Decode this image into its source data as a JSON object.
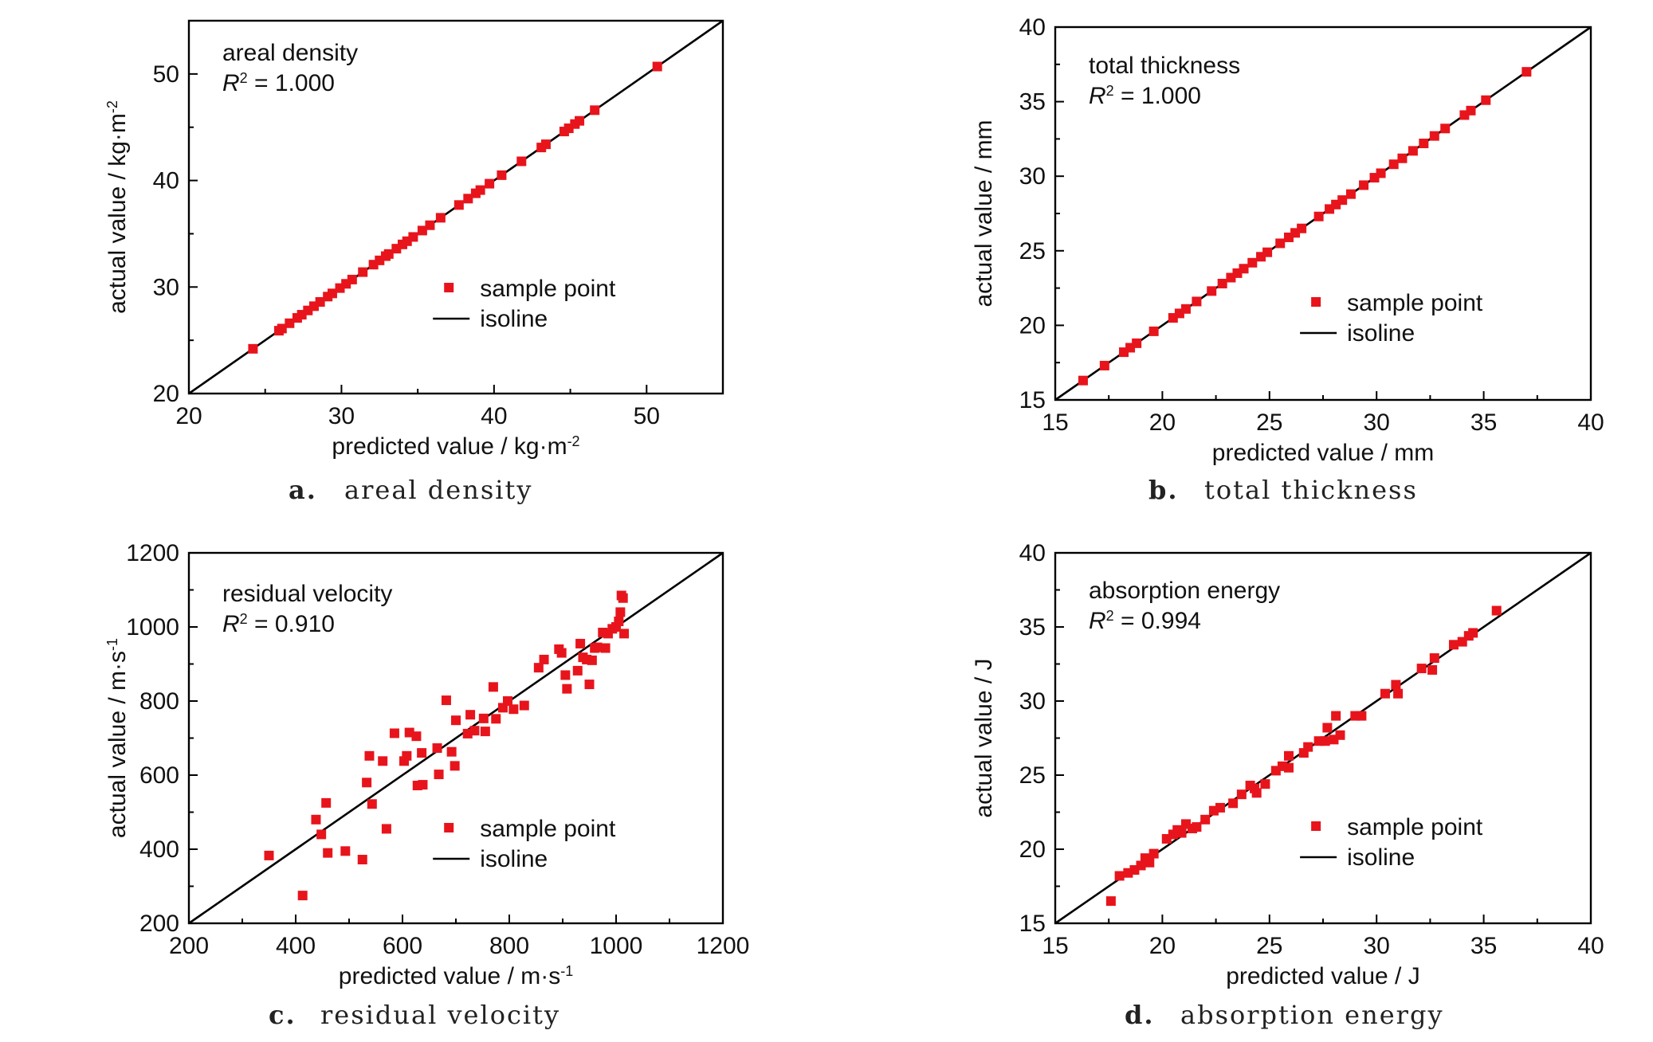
{
  "figure": {
    "charts": [
      {
        "panel_letter": "a.",
        "caption": "areal density",
        "annotation_title": "areal density",
        "r2_value": " = 1.000",
        "legend": {
          "sample": "sample point",
          "isoline": "isoline"
        },
        "xlabel": "predicted value / kg·m",
        "xlabel_sup": "-2",
        "ylabel": "actual value / kg·m",
        "ylabel_sup": "-2",
        "xticks": [
          "20",
          "30",
          "40",
          "50"
        ],
        "yticks": [
          "20",
          "30",
          "40",
          "50"
        ]
      },
      {
        "panel_letter": "b.",
        "caption": "total thickness",
        "annotation_title": "total thickness",
        "r2_value": " = 1.000",
        "legend": {
          "sample": "sample point",
          "isoline": "isoline"
        },
        "xlabel": "predicted value / mm",
        "xlabel_sup": "",
        "ylabel": "actual value / mm",
        "ylabel_sup": "",
        "xticks": [
          "15",
          "20",
          "25",
          "30",
          "35",
          "40"
        ],
        "yticks": [
          "15",
          "20",
          "25",
          "30",
          "35",
          "40"
        ]
      },
      {
        "panel_letter": "c.",
        "caption": "residual velocity",
        "annotation_title": "residual velocity",
        "r2_value": " = 0.910",
        "legend": {
          "sample": "sample point",
          "isoline": "isoline"
        },
        "xlabel": "predicted value / m·s",
        "xlabel_sup": "-1",
        "ylabel": "actual value / m·s",
        "ylabel_sup": "-1",
        "xticks": [
          "200",
          "400",
          "600",
          "800",
          "1000",
          "1200"
        ],
        "yticks": [
          "200",
          "400",
          "600",
          "800",
          "1000",
          "1200"
        ]
      },
      {
        "panel_letter": "d.",
        "caption": "absorption energy",
        "annotation_title": "absorption energy",
        "r2_value": " = 0.994",
        "legend": {
          "sample": "sample point",
          "isoline": "isoline"
        },
        "xlabel": "predicted value / J",
        "xlabel_sup": "",
        "ylabel": "actual value / J",
        "ylabel_sup": "",
        "xticks": [
          "15",
          "20",
          "25",
          "30",
          "35",
          "40"
        ],
        "yticks": [
          "15",
          "20",
          "25",
          "30",
          "35",
          "40"
        ]
      }
    ]
  },
  "chart_data": [
    {
      "type": "scatter",
      "title": "areal density",
      "r2": "1.000",
      "xlabel": "predicted value / kg·m-2",
      "ylabel": "actual value / kg·m-2",
      "xlim": [
        20,
        55
      ],
      "ylim": [
        20,
        55
      ],
      "xticks": [
        20,
        30,
        40,
        50
      ],
      "yticks": [
        20,
        30,
        40,
        50
      ],
      "marker_color": "#e8141c",
      "line_color": "#000000",
      "isoline": [
        [
          20,
          20
        ],
        [
          55,
          55
        ]
      ],
      "series": [
        {
          "name": "sample point",
          "points": [
            [
              24.2,
              24.2
            ],
            [
              25.9,
              25.9
            ],
            [
              26.1,
              26.1
            ],
            [
              26.6,
              26.6
            ],
            [
              27.1,
              27.1
            ],
            [
              27.4,
              27.4
            ],
            [
              27.8,
              27.8
            ],
            [
              28.2,
              28.2
            ],
            [
              28.6,
              28.6
            ],
            [
              29.1,
              29.1
            ],
            [
              29.4,
              29.4
            ],
            [
              29.9,
              29.9
            ],
            [
              30.3,
              30.3
            ],
            [
              30.7,
              30.7
            ],
            [
              31.4,
              31.4
            ],
            [
              32.1,
              32.1
            ],
            [
              32.5,
              32.5
            ],
            [
              32.9,
              32.9
            ],
            [
              33.1,
              33.1
            ],
            [
              33.6,
              33.6
            ],
            [
              34.0,
              34.0
            ],
            [
              34.3,
              34.3
            ],
            [
              34.7,
              34.7
            ],
            [
              35.3,
              35.3
            ],
            [
              35.8,
              35.8
            ],
            [
              36.5,
              36.5
            ],
            [
              37.7,
              37.7
            ],
            [
              38.3,
              38.3
            ],
            [
              38.8,
              38.8
            ],
            [
              39.1,
              39.1
            ],
            [
              39.7,
              39.7
            ],
            [
              40.5,
              40.5
            ],
            [
              41.8,
              41.8
            ],
            [
              43.1,
              43.1
            ],
            [
              43.4,
              43.4
            ],
            [
              44.6,
              44.6
            ],
            [
              44.9,
              44.9
            ],
            [
              45.3,
              45.3
            ],
            [
              45.6,
              45.6
            ],
            [
              46.6,
              46.6
            ],
            [
              50.7,
              50.7
            ]
          ]
        },
        {
          "name": "isoline"
        }
      ]
    },
    {
      "type": "scatter",
      "title": "total thickness",
      "r2": "1.000",
      "xlabel": "predicted value / mm",
      "ylabel": "actual value / mm",
      "xlim": [
        15,
        40
      ],
      "ylim": [
        15,
        40
      ],
      "xticks": [
        15,
        20,
        25,
        30,
        35,
        40
      ],
      "yticks": [
        15,
        20,
        25,
        30,
        35,
        40
      ],
      "marker_color": "#e8141c",
      "line_color": "#000000",
      "isoline": [
        [
          15,
          15
        ],
        [
          40,
          40
        ]
      ],
      "series": [
        {
          "name": "sample point",
          "points": [
            [
              16.3,
              16.3
            ],
            [
              17.3,
              17.3
            ],
            [
              18.2,
              18.2
            ],
            [
              18.5,
              18.5
            ],
            [
              18.8,
              18.8
            ],
            [
              19.6,
              19.6
            ],
            [
              20.5,
              20.5
            ],
            [
              20.8,
              20.8
            ],
            [
              21.1,
              21.1
            ],
            [
              21.6,
              21.6
            ],
            [
              22.3,
              22.3
            ],
            [
              22.8,
              22.8
            ],
            [
              23.2,
              23.2
            ],
            [
              23.5,
              23.5
            ],
            [
              23.8,
              23.8
            ],
            [
              24.2,
              24.2
            ],
            [
              24.6,
              24.6
            ],
            [
              24.9,
              24.9
            ],
            [
              25.5,
              25.5
            ],
            [
              25.9,
              25.9
            ],
            [
              26.2,
              26.2
            ],
            [
              26.5,
              26.5
            ],
            [
              27.3,
              27.3
            ],
            [
              27.8,
              27.8
            ],
            [
              28.1,
              28.1
            ],
            [
              28.4,
              28.4
            ],
            [
              28.8,
              28.8
            ],
            [
              29.4,
              29.4
            ],
            [
              29.9,
              29.9
            ],
            [
              30.2,
              30.2
            ],
            [
              30.8,
              30.8
            ],
            [
              31.2,
              31.2
            ],
            [
              31.7,
              31.7
            ],
            [
              32.2,
              32.2
            ],
            [
              32.7,
              32.7
            ],
            [
              33.2,
              33.2
            ],
            [
              34.1,
              34.1
            ],
            [
              34.4,
              34.4
            ],
            [
              35.1,
              35.1
            ],
            [
              37.0,
              37.0
            ]
          ]
        },
        {
          "name": "isoline"
        }
      ]
    },
    {
      "type": "scatter",
      "title": "residual velocity",
      "r2": "0.910",
      "xlabel": "predicted value / m·s-1",
      "ylabel": "actual value / m·s-1",
      "xlim": [
        200,
        1200
      ],
      "ylim": [
        200,
        1200
      ],
      "xticks": [
        200,
        400,
        600,
        800,
        1000,
        1200
      ],
      "yticks": [
        200,
        400,
        600,
        800,
        1000,
        1200
      ],
      "marker_color": "#e8141c",
      "line_color": "#000000",
      "isoline": [
        [
          200,
          200
        ],
        [
          1200,
          1200
        ]
      ],
      "series": [
        {
          "name": "sample point",
          "points": [
            [
              350,
              383
            ],
            [
              413,
              275
            ],
            [
              438,
              480
            ],
            [
              448,
              440
            ],
            [
              457,
              525
            ],
            [
              460,
              390
            ],
            [
              493,
              395
            ],
            [
              525,
              372
            ],
            [
              533,
              580
            ],
            [
              538,
              652
            ],
            [
              543,
              522
            ],
            [
              563,
              638
            ],
            [
              570,
              455
            ],
            [
              585,
              713
            ],
            [
              603,
              638
            ],
            [
              608,
              652
            ],
            [
              613,
              715
            ],
            [
              626,
              705
            ],
            [
              628,
              572
            ],
            [
              636,
              660
            ],
            [
              638,
              574
            ],
            [
              665,
              673
            ],
            [
              668,
              602
            ],
            [
              682,
              802
            ],
            [
              692,
              663
            ],
            [
              698,
              625
            ],
            [
              700,
              748
            ],
            [
              722,
              712
            ],
            [
              727,
              763
            ],
            [
              735,
              720
            ],
            [
              752,
              753
            ],
            [
              755,
              718
            ],
            [
              770,
              838
            ],
            [
              775,
              752
            ],
            [
              788,
              782
            ],
            [
              797,
              800
            ],
            [
              808,
              778
            ],
            [
              828,
              788
            ],
            [
              855,
              890
            ],
            [
              865,
              912
            ],
            [
              893,
              940
            ],
            [
              898,
              930
            ],
            [
              905,
              870
            ],
            [
              908,
              833
            ],
            [
              928,
              882
            ],
            [
              933,
              955
            ],
            [
              938,
              918
            ],
            [
              945,
              912
            ],
            [
              950,
              845
            ],
            [
              955,
              910
            ],
            [
              960,
              943
            ],
            [
              965,
              945
            ],
            [
              975,
              985
            ],
            [
              980,
              943
            ],
            [
              985,
              982
            ],
            [
              993,
              995
            ],
            [
              1000,
              1000
            ],
            [
              1005,
              1015
            ],
            [
              1008,
              1040
            ],
            [
              1010,
              1085
            ],
            [
              1013,
              1078
            ],
            [
              1015,
              982
            ]
          ]
        },
        {
          "name": "isoline"
        }
      ]
    },
    {
      "type": "scatter",
      "title": "absorption energy",
      "r2": "0.994",
      "xlabel": "predicted value / J",
      "ylabel": "actual value / J",
      "xlim": [
        15,
        40
      ],
      "ylim": [
        15,
        40
      ],
      "xticks": [
        15,
        20,
        25,
        30,
        35,
        40
      ],
      "yticks": [
        15,
        20,
        25,
        30,
        35,
        40
      ],
      "marker_color": "#e8141c",
      "line_color": "#000000",
      "isoline": [
        [
          15,
          15
        ],
        [
          40,
          40
        ]
      ],
      "series": [
        {
          "name": "sample point",
          "points": [
            [
              17.6,
              16.5
            ],
            [
              18.0,
              18.2
            ],
            [
              18.4,
              18.4
            ],
            [
              18.7,
              18.6
            ],
            [
              19.0,
              18.9
            ],
            [
              19.2,
              19.4
            ],
            [
              19.4,
              19.1
            ],
            [
              19.6,
              19.7
            ],
            [
              20.2,
              20.7
            ],
            [
              20.5,
              21.0
            ],
            [
              20.7,
              21.3
            ],
            [
              20.9,
              21.1
            ],
            [
              21.1,
              21.7
            ],
            [
              21.4,
              21.4
            ],
            [
              21.6,
              21.5
            ],
            [
              22.0,
              22.0
            ],
            [
              22.4,
              22.6
            ],
            [
              22.7,
              22.8
            ],
            [
              23.3,
              23.1
            ],
            [
              23.7,
              23.7
            ],
            [
              24.1,
              24.3
            ],
            [
              24.3,
              24.1
            ],
            [
              24.4,
              23.8
            ],
            [
              24.8,
              24.4
            ],
            [
              25.3,
              25.3
            ],
            [
              25.6,
              25.6
            ],
            [
              25.9,
              25.5
            ],
            [
              25.9,
              26.3
            ],
            [
              26.6,
              26.5
            ],
            [
              26.8,
              26.9
            ],
            [
              27.3,
              27.3
            ],
            [
              27.6,
              27.3
            ],
            [
              27.7,
              28.2
            ],
            [
              28.0,
              27.4
            ],
            [
              28.1,
              29.0
            ],
            [
              28.3,
              27.7
            ],
            [
              29.0,
              29.0
            ],
            [
              29.3,
              29.0
            ],
            [
              30.4,
              30.5
            ],
            [
              30.9,
              31.1
            ],
            [
              31.0,
              30.5
            ],
            [
              32.1,
              32.2
            ],
            [
              32.6,
              32.1
            ],
            [
              32.7,
              32.9
            ],
            [
              33.6,
              33.8
            ],
            [
              34.0,
              34.0
            ],
            [
              34.3,
              34.4
            ],
            [
              34.5,
              34.6
            ],
            [
              35.6,
              36.1
            ]
          ]
        },
        {
          "name": "isoline"
        }
      ]
    }
  ]
}
